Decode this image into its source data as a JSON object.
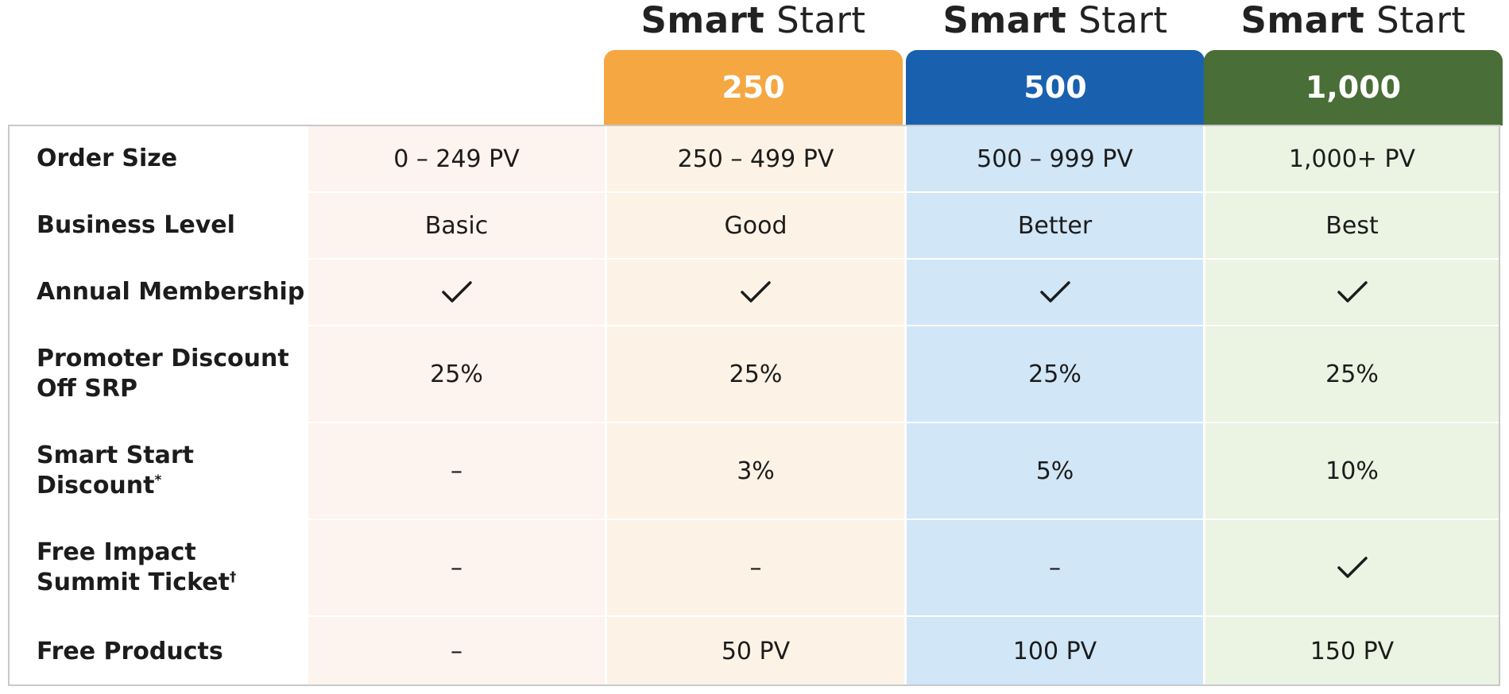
{
  "colors": {
    "tier_250": "#F5A742",
    "tier_500": "#1961AF",
    "tier_1000": "#4A6E37",
    "bg_basic": "#FDF3EF",
    "bg_250": "#FCF3E6",
    "bg_500": "#D1E6F7",
    "bg_1000": "#EBF3E2"
  },
  "plans": [
    {
      "brand_bold": "Smart",
      "brand_light": "Start",
      "tier": "250"
    },
    {
      "brand_bold": "Smart",
      "brand_light": "Start",
      "tier": "500"
    },
    {
      "brand_bold": "Smart",
      "brand_light": "Start",
      "tier": "1,000"
    }
  ],
  "rows": [
    {
      "label_lines": [
        "Order Size"
      ],
      "cells": [
        "0 – 249 PV",
        "250 – 499 PV",
        "500 – 999 PV",
        "1,000+ PV"
      ]
    },
    {
      "label_lines": [
        "Business Level"
      ],
      "cells": [
        "Basic",
        "Good",
        "Better",
        "Best"
      ]
    },
    {
      "label_lines": [
        "Annual Membership"
      ],
      "cells": [
        "check-icon",
        "check-icon",
        "check-icon",
        "check-icon"
      ]
    },
    {
      "label_lines": [
        "Promoter Discount",
        "Off SRP"
      ],
      "cells": [
        "25%",
        "25%",
        "25%",
        "25%"
      ]
    },
    {
      "label_lines": [
        "Smart Start",
        "Discount"
      ],
      "label_mark": "*",
      "cells": [
        "–",
        "3%",
        "5%",
        "10%"
      ]
    },
    {
      "label_lines": [
        "Free Impact",
        "Summit Ticket"
      ],
      "label_mark": "†",
      "cells": [
        "–",
        "–",
        "–",
        "check-icon"
      ]
    },
    {
      "label_lines": [
        "Free Products"
      ],
      "cells": [
        "–",
        "50 PV",
        "100 PV",
        "150 PV"
      ]
    }
  ]
}
